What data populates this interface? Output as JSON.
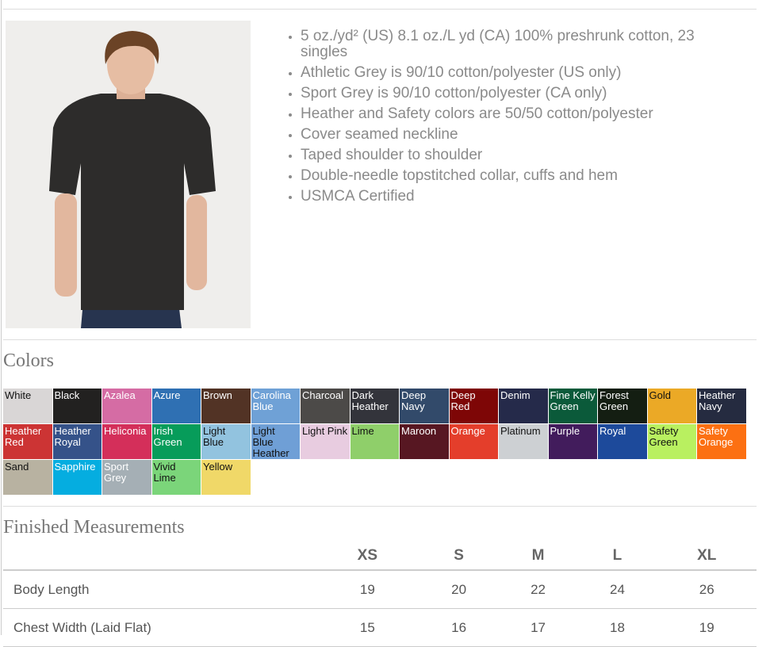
{
  "features": [
    "5 oz./yd² (US) 8.1 oz./L yd (CA) 100% preshrunk cotton, 23 singles",
    "Athletic Grey is 90/10 cotton/polyester (US only)",
    "Sport Grey is 90/10 cotton/polyester (CA only)",
    "Heather and Safety colors are 50/50 cotton/polyester",
    "Cover seamed neckline",
    "Taped shoulder to shoulder",
    "Double-needle topstitched collar, cuffs and hem",
    "USMCA Certified"
  ],
  "colors_heading": "Colors",
  "colors": [
    {
      "name": "White",
      "hex": "#d9d6d6",
      "dark": true
    },
    {
      "name": "Black",
      "hex": "#222120"
    },
    {
      "name": "Azalea",
      "hex": "#d56ca4"
    },
    {
      "name": "Azure",
      "hex": "#2f70b3"
    },
    {
      "name": "Brown",
      "hex": "#523325"
    },
    {
      "name": "Carolina Blue",
      "hex": "#6fa1d6"
    },
    {
      "name": "Charcoal",
      "hex": "#4c4a48"
    },
    {
      "name": "Dark Heather",
      "hex": "#33343b"
    },
    {
      "name": "Deep Navy",
      "hex": "#324a6a"
    },
    {
      "name": "Deep Red",
      "hex": "#7e0606"
    },
    {
      "name": "Denim",
      "hex": "#252a4a"
    },
    {
      "name": "Fine Kelly Green",
      "hex": "#0b5a3a"
    },
    {
      "name": "Forest Green",
      "hex": "#141e12"
    },
    {
      "name": "Gold",
      "hex": "#eba926",
      "dark": true
    },
    {
      "name": "Heather Navy",
      "hex": "#252b40"
    },
    {
      "name": "Heather Red",
      "hex": "#cc3434"
    },
    {
      "name": "Heather Royal",
      "hex": "#355289"
    },
    {
      "name": "Heliconia",
      "hex": "#d42f5a"
    },
    {
      "name": "Irish Green",
      "hex": "#079c5a"
    },
    {
      "name": "Light Blue",
      "hex": "#92c3df",
      "dark": true
    },
    {
      "name": "Light Blue Heather",
      "hex": "#6f9fd6",
      "dark": true
    },
    {
      "name": "Light Pink",
      "hex": "#e8cce0",
      "dark": true
    },
    {
      "name": "Lime",
      "hex": "#8fcf6a",
      "dark": true
    },
    {
      "name": "Maroon",
      "hex": "#571722"
    },
    {
      "name": "Orange",
      "hex": "#e43e2b"
    },
    {
      "name": "Platinum",
      "hex": "#cdd0d3",
      "dark": true
    },
    {
      "name": "Purple",
      "hex": "#421c5c"
    },
    {
      "name": "Royal",
      "hex": "#1d4a9b"
    },
    {
      "name": "Safety Green",
      "hex": "#b9f060",
      "dark": true
    },
    {
      "name": "Safety Orange",
      "hex": "#fc7012"
    },
    {
      "name": "Sand",
      "hex": "#b8b2a1",
      "dark": true
    },
    {
      "name": "Sapphire",
      "hex": "#05ade0"
    },
    {
      "name": "Sport Grey",
      "hex": "#a5afb5"
    },
    {
      "name": "Vivid Lime",
      "hex": "#7bd57a",
      "dark": true
    },
    {
      "name": "Yellow",
      "hex": "#f0d868",
      "dark": true
    }
  ],
  "measurements": {
    "heading": "Finished Measurements",
    "sizes": [
      "XS",
      "S",
      "M",
      "L",
      "XL"
    ],
    "rows": [
      {
        "label": "Body Length",
        "values": [
          "19",
          "20",
          "22",
          "24",
          "26"
        ]
      },
      {
        "label": "Chest Width (Laid Flat)",
        "values": [
          "15",
          "16",
          "17",
          "18",
          "19"
        ]
      }
    ]
  }
}
